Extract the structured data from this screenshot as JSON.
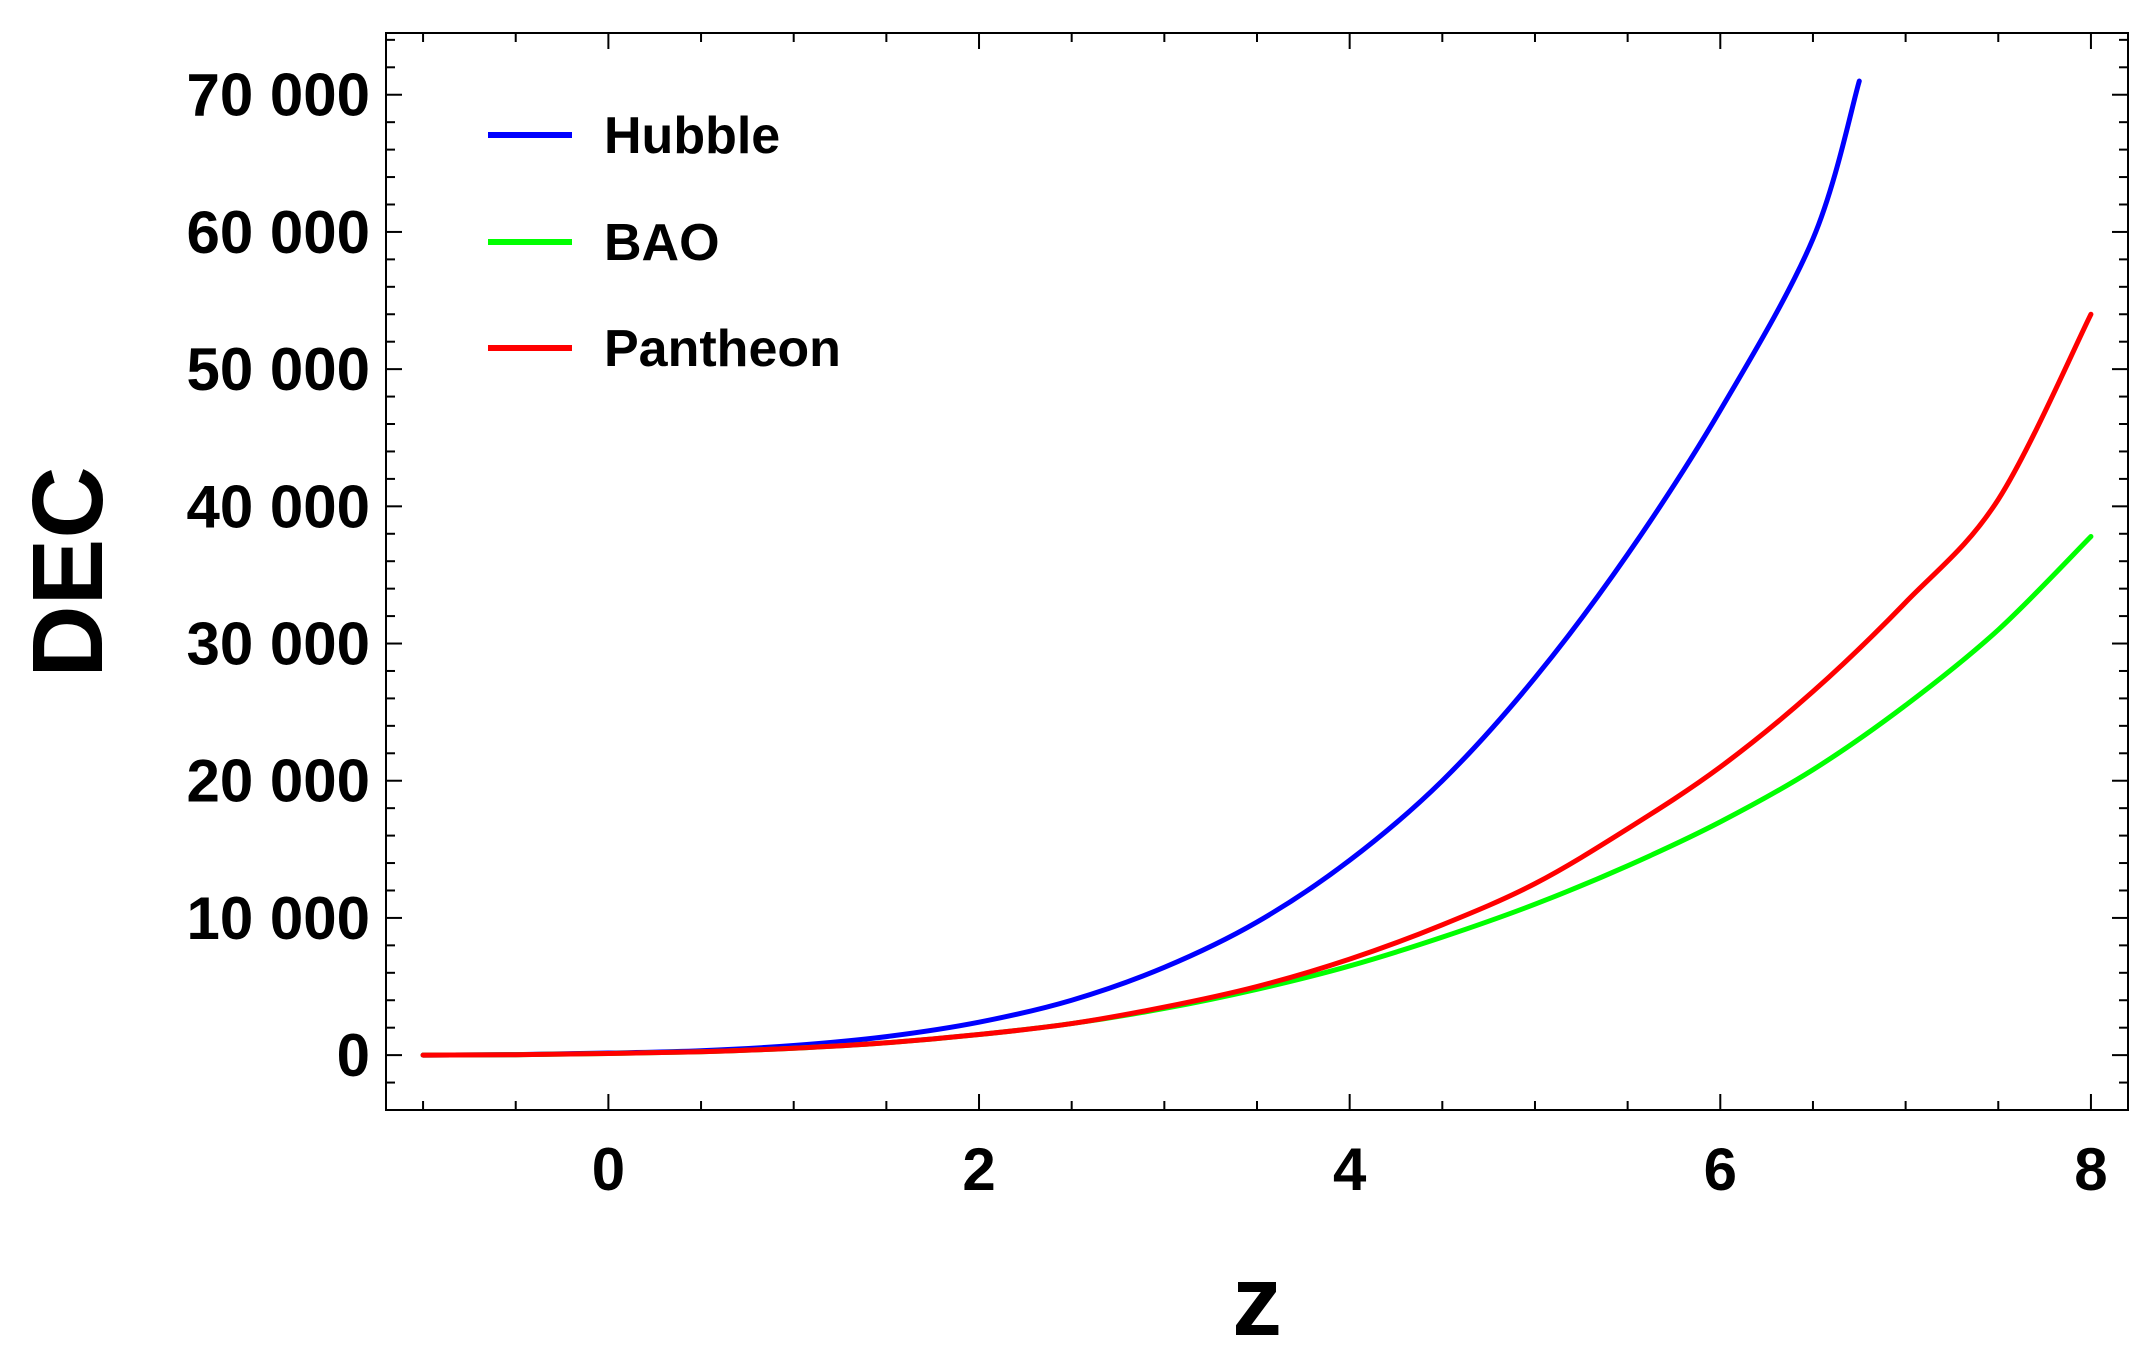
{
  "chart_data": {
    "type": "line",
    "title": "",
    "xlabel": "z",
    "ylabel": "DEC",
    "xlim": [
      -1.2,
      8.2
    ],
    "ylim": [
      -4000,
      74500
    ],
    "x_ticks": [
      0,
      2,
      4,
      6,
      8
    ],
    "x_tick_labels": [
      "0",
      "2",
      "4",
      "6",
      "8"
    ],
    "y_ticks": [
      0,
      10000,
      20000,
      30000,
      40000,
      50000,
      60000,
      70000
    ],
    "y_tick_labels": [
      "0",
      "10 000",
      "20 000",
      "30 000",
      "40 000",
      "50 000",
      "60 000",
      "70 000"
    ],
    "grid": false,
    "legend_position": "top-left",
    "series": [
      {
        "name": "Hubble",
        "color": "#0000ff",
        "x": [
          -1,
          -0.5,
          0,
          0.5,
          1,
          1.5,
          2,
          2.5,
          3,
          3.5,
          4,
          4.5,
          5,
          5.5,
          6,
          6.5,
          6.75
        ],
        "y": [
          0,
          40,
          150,
          320,
          700,
          1350,
          2400,
          4000,
          6400,
          9700,
          14200,
          20000,
          27500,
          36500,
          47000,
          59500,
          71000
        ]
      },
      {
        "name": "BAO",
        "color": "#00ff00",
        "x": [
          -1,
          -0.5,
          0,
          0.5,
          1,
          1.5,
          2,
          2.5,
          3,
          3.5,
          4,
          4.5,
          5,
          5.5,
          6,
          6.5,
          7,
          7.5,
          8
        ],
        "y": [
          0,
          30,
          120,
          250,
          500,
          900,
          1500,
          2300,
          3400,
          4800,
          6500,
          8600,
          11000,
          13800,
          17000,
          20800,
          25500,
          31000,
          37800
        ]
      },
      {
        "name": "Pantheon",
        "color": "#ff0000",
        "x": [
          -1,
          -0.5,
          0,
          0.5,
          1,
          1.5,
          2,
          2.5,
          3,
          3.5,
          4,
          4.5,
          5,
          5.5,
          6,
          6.5,
          7,
          7.5,
          8
        ],
        "y": [
          0,
          30,
          120,
          250,
          500,
          900,
          1500,
          2300,
          3500,
          5000,
          7000,
          9500,
          12500,
          16500,
          21000,
          26500,
          33000,
          40500,
          54000
        ]
      }
    ]
  }
}
